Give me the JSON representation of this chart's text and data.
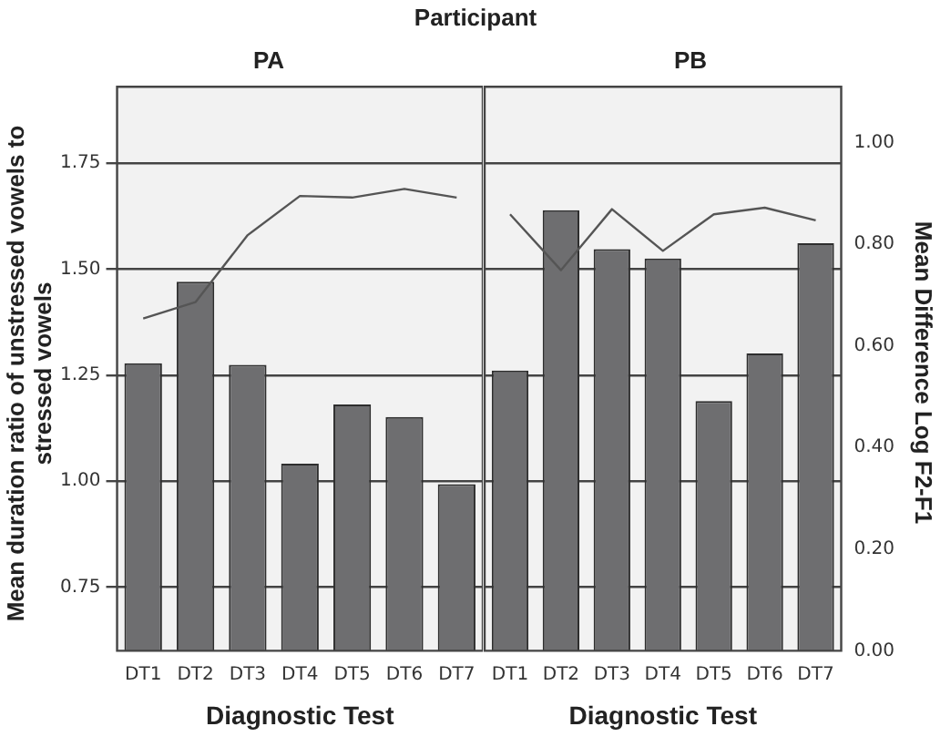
{
  "chart_data": [
    {
      "type": "bar",
      "title": "Participant",
      "subtitle": "PA",
      "xlabel": "Diagnostic Test",
      "ylabel": "Mean duration ratio of unstressed  vowels to stressed vowels",
      "categories": [
        "DT1",
        "DT2",
        "DT3",
        "DT4",
        "DT5",
        "DT6",
        "DT7"
      ],
      "series": [
        {
          "color": "#6e6e70",
          "values": [
            1.278,
            1.47,
            1.274,
            1.041,
            1.181,
            1.151,
            0.993
          ]
        },
        {
          "type": "line",
          "axis": "y2",
          "color": "#555555",
          "values": [
            0.654,
            0.686,
            0.818,
            0.895,
            0.892,
            0.909,
            0.892
          ]
        }
      ],
      "ylim": [
        0.6,
        1.93
      ],
      "yticks": [
        0.75,
        {
          "value": 1,
          "label": "1.00"
        },
        1.25,
        {
          "value": 1.5,
          "label": "1.50"
        },
        1.75
      ],
      "y2lim": [
        0,
        1.11
      ],
      "grid": "y",
      "legend": false,
      "marker": "none",
      "tick_labels": "xy"
    },
    {
      "type": "bar",
      "subtitle": "PB",
      "xlabel": "Diagnostic Test",
      "y2label": "Mean Difference Log F2-F1",
      "categories": [
        "DT1",
        "DT2",
        "DT3",
        "DT4",
        "DT5",
        "DT6",
        "DT7"
      ],
      "series": [
        {
          "color": "#6e6e70",
          "values": [
            1.261,
            1.639,
            1.547,
            1.525,
            1.189,
            1.301,
            1.561
          ]
        },
        {
          "type": "line",
          "axis": "y2",
          "color": "#555555",
          "values": [
            0.859,
            0.749,
            0.869,
            0.787,
            0.859,
            0.872,
            0.847
          ]
        }
      ],
      "ylim": [
        0.6,
        1.93
      ],
      "y2lim": [
        0,
        1.11
      ],
      "y2ticks": [
        {
          "value": 0,
          "label": "0.00"
        },
        {
          "value": 0.2,
          "label": "0.20"
        },
        {
          "value": 0.4,
          "label": "0.40"
        },
        {
          "value": 0.6,
          "label": "0.60"
        },
        {
          "value": 0.8,
          "label": "0.80"
        },
        {
          "value": 1,
          "label": "1.00"
        }
      ],
      "grid": "y",
      "legend": false,
      "marker": "none",
      "tick_labels": "xy2"
    }
  ]
}
